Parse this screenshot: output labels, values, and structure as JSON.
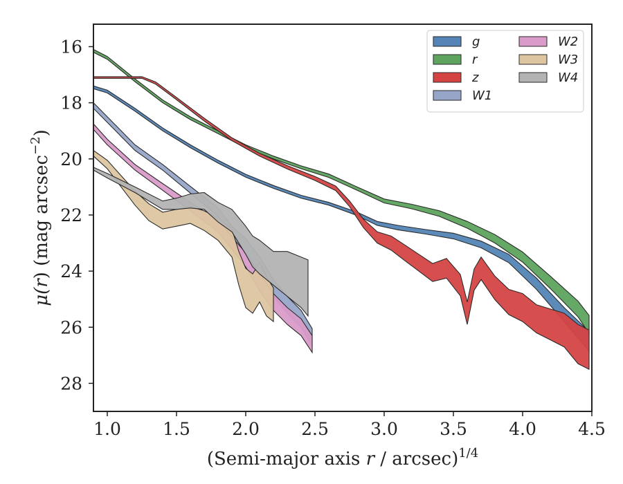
{
  "chart_data": {
    "type": "area",
    "xlabel_main": "(Semi-major axis ",
    "xlabel_var": "r",
    "xlabel_tail": " / arcsec)",
    "xlabel_sup": "1/4",
    "ylabel_main": "μ(",
    "ylabel_var": "r",
    "ylabel_tail": ") (mag arcsec",
    "ylabel_sup": "−2",
    "ylabel_close": ")",
    "xlim": [
      0.9,
      4.5
    ],
    "ylim": [
      29,
      15.2
    ],
    "xticks": [
      "1.0",
      "1.5",
      "2.0",
      "2.5",
      "3.0",
      "3.5",
      "4.0",
      "4.5"
    ],
    "xtick_values": [
      1.0,
      1.5,
      2.0,
      2.5,
      3.0,
      3.5,
      4.0,
      4.5
    ],
    "yticks": [
      "16",
      "18",
      "20",
      "22",
      "24",
      "26",
      "28"
    ],
    "ytick_values": [
      16,
      18,
      20,
      22,
      24,
      26,
      28
    ],
    "legend_position": "top-right",
    "series": [
      {
        "name": "g",
        "color": "#5384b5",
        "x": [
          0.9,
          1.0,
          1.2,
          1.4,
          1.6,
          1.8,
          2.0,
          2.2,
          2.4,
          2.6,
          2.8,
          2.95,
          3.1,
          3.3,
          3.5,
          3.7,
          3.9,
          4.1,
          4.3,
          4.48
        ],
        "y": [
          17.45,
          17.6,
          18.25,
          18.95,
          19.55,
          20.1,
          20.6,
          21.0,
          21.35,
          21.6,
          21.95,
          22.3,
          22.45,
          22.6,
          22.75,
          23.05,
          23.55,
          24.45,
          25.55,
          26.5
        ],
        "err": [
          0.05,
          0.05,
          0.05,
          0.05,
          0.05,
          0.05,
          0.05,
          0.05,
          0.05,
          0.05,
          0.06,
          0.07,
          0.08,
          0.08,
          0.1,
          0.12,
          0.15,
          0.2,
          0.25,
          0.35
        ]
      },
      {
        "name": "r",
        "color": "#5ea35e",
        "x": [
          0.9,
          1.0,
          1.2,
          1.4,
          1.6,
          1.8,
          2.0,
          2.2,
          2.4,
          2.6,
          2.8,
          3.0,
          3.2,
          3.4,
          3.6,
          3.8,
          4.0,
          4.2,
          4.4,
          4.48
        ],
        "y": [
          16.15,
          16.4,
          17.2,
          17.95,
          18.55,
          19.05,
          19.55,
          19.95,
          20.3,
          20.6,
          21.05,
          21.5,
          21.7,
          21.95,
          22.35,
          22.85,
          23.5,
          24.4,
          25.35,
          25.9
        ],
        "err": [
          0.05,
          0.05,
          0.05,
          0.05,
          0.05,
          0.05,
          0.05,
          0.05,
          0.05,
          0.06,
          0.06,
          0.07,
          0.08,
          0.1,
          0.12,
          0.15,
          0.18,
          0.22,
          0.28,
          0.32
        ]
      },
      {
        "name": "z",
        "color": "#d44444",
        "x": [
          0.9,
          1.1,
          1.25,
          1.35,
          1.5,
          1.7,
          1.9,
          2.1,
          2.3,
          2.5,
          2.65,
          2.75,
          2.85,
          2.95,
          3.05,
          3.15,
          3.25,
          3.35,
          3.45,
          3.55,
          3.6,
          3.65,
          3.7,
          3.8,
          3.9,
          4.0,
          4.1,
          4.2,
          4.3,
          4.4,
          4.48
        ],
        "y": [
          17.1,
          17.1,
          17.1,
          17.3,
          17.85,
          18.6,
          19.3,
          19.85,
          20.3,
          20.7,
          21.05,
          21.6,
          22.3,
          22.8,
          23.0,
          23.35,
          23.7,
          24.05,
          23.9,
          24.5,
          25.5,
          24.3,
          23.9,
          24.6,
          25.1,
          25.3,
          25.7,
          25.9,
          26.1,
          26.6,
          26.8
        ],
        "err": [
          0.03,
          0.03,
          0.03,
          0.04,
          0.04,
          0.05,
          0.05,
          0.05,
          0.06,
          0.07,
          0.08,
          0.1,
          0.15,
          0.2,
          0.25,
          0.28,
          0.3,
          0.32,
          0.35,
          0.38,
          0.4,
          0.38,
          0.4,
          0.42,
          0.45,
          0.5,
          0.5,
          0.55,
          0.6,
          0.7,
          0.7
        ]
      },
      {
        "name": "W1",
        "color": "#97a6c8",
        "x": [
          0.9,
          1.0,
          1.2,
          1.4,
          1.6,
          1.8,
          1.9,
          2.0,
          2.1,
          2.2,
          2.3,
          2.4,
          2.48
        ],
        "y": [
          18.1,
          18.6,
          19.6,
          20.3,
          21.1,
          21.9,
          22.6,
          23.1,
          23.8,
          24.6,
          25.2,
          25.7,
          26.35
        ],
        "err": [
          0.1,
          0.1,
          0.1,
          0.1,
          0.12,
          0.15,
          0.2,
          0.25,
          0.3,
          0.3,
          0.3,
          0.3,
          0.3
        ]
      },
      {
        "name": "W2",
        "color": "#d99bc8",
        "x": [
          0.9,
          1.0,
          1.2,
          1.4,
          1.6,
          1.8,
          1.9,
          2.0,
          2.1,
          2.2,
          2.3,
          2.4,
          2.48
        ],
        "y": [
          18.85,
          19.4,
          20.3,
          21.0,
          21.7,
          22.4,
          23.0,
          23.6,
          24.4,
          25.1,
          25.6,
          26.0,
          26.6
        ],
        "err": [
          0.1,
          0.1,
          0.1,
          0.12,
          0.15,
          0.2,
          0.22,
          0.25,
          0.3,
          0.3,
          0.3,
          0.3,
          0.3
        ]
      },
      {
        "name": "W3",
        "color": "#ddc5a0",
        "x": [
          0.9,
          1.0,
          1.1,
          1.2,
          1.3,
          1.4,
          1.5,
          1.6,
          1.7,
          1.8,
          1.9,
          1.95,
          2.0,
          2.05,
          2.1,
          2.15,
          2.2
        ],
        "y": [
          19.8,
          20.2,
          20.8,
          21.4,
          21.9,
          22.2,
          22.1,
          22.0,
          22.2,
          22.5,
          23.0,
          23.9,
          24.6,
          24.8,
          24.4,
          24.9,
          25.2
        ],
        "err": [
          0.1,
          0.15,
          0.2,
          0.25,
          0.3,
          0.3,
          0.3,
          0.3,
          0.35,
          0.4,
          0.5,
          0.6,
          0.7,
          0.7,
          0.7,
          0.7,
          0.6
        ]
      },
      {
        "name": "W4",
        "color": "#b3b3b3",
        "x": [
          0.9,
          1.0,
          1.2,
          1.4,
          1.5,
          1.6,
          1.7,
          1.8,
          1.9,
          2.0,
          2.05,
          2.1,
          2.15,
          2.2,
          2.3,
          2.4,
          2.45
        ],
        "y": [
          20.35,
          20.6,
          21.1,
          21.65,
          21.6,
          21.5,
          21.5,
          21.9,
          22.2,
          22.9,
          23.3,
          23.5,
          23.7,
          23.9,
          24.1,
          24.4,
          24.6
        ],
        "err": [
          0.05,
          0.08,
          0.1,
          0.15,
          0.2,
          0.25,
          0.3,
          0.35,
          0.4,
          0.5,
          0.55,
          0.6,
          0.6,
          0.6,
          0.8,
          0.9,
          1.0
        ]
      }
    ]
  }
}
